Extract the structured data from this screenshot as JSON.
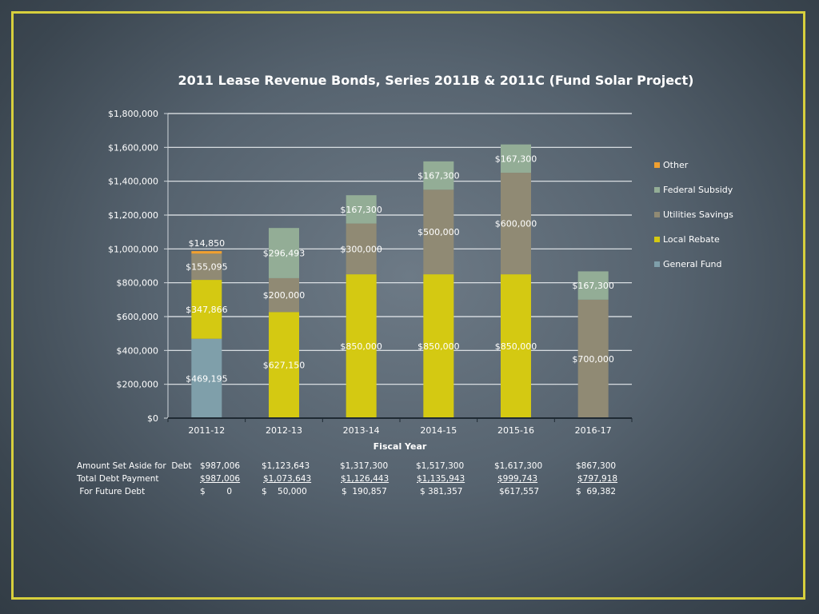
{
  "chart_data": {
    "type": "bar",
    "stacked": true,
    "title": "2011 Lease Revenue Bonds, Series 2011B & 2011C (Fund Solar Project)",
    "xlabel": "Fiscal Year",
    "ylabel": "",
    "ylim": [
      0,
      1800000
    ],
    "yticks": [
      {
        "value": 0,
        "label": "$0"
      },
      {
        "value": 200000,
        "label": "$200,000"
      },
      {
        "value": 400000,
        "label": "$400,000"
      },
      {
        "value": 600000,
        "label": "$600,000"
      },
      {
        "value": 800000,
        "label": "$800,000"
      },
      {
        "value": 1000000,
        "label": "$1,000,000"
      },
      {
        "value": 1200000,
        "label": "$1,200,000"
      },
      {
        "value": 1400000,
        "label": "$1,400,000"
      },
      {
        "value": 1600000,
        "label": "$1,600,000"
      },
      {
        "value": 1800000,
        "label": "$1,800,000"
      }
    ],
    "grid": true,
    "legend_position": "right",
    "categories": [
      "2011-12",
      "2012-13",
      "2013-14",
      "2014-15",
      "2015-16",
      "2016-17"
    ],
    "series": [
      {
        "name": "General Fund",
        "color": "#7f9faa",
        "values": [
          469195,
          0,
          0,
          0,
          0,
          0
        ],
        "labels": [
          "$469,195",
          "",
          "",
          "",
          "",
          ""
        ]
      },
      {
        "name": "Local Rebate",
        "color": "#d4c912",
        "values": [
          347866,
          627150,
          850000,
          850000,
          850000,
          0
        ],
        "labels": [
          "$347,866",
          "$627,150",
          "$850,000",
          "$850,000",
          "$850,000",
          ""
        ]
      },
      {
        "name": "Utilities Savings",
        "color": "#908a74",
        "values": [
          155095,
          200000,
          300000,
          500000,
          600000,
          700000
        ],
        "labels": [
          "$155,095",
          "$200,000",
          "$300,000",
          "$500,000",
          "$600,000",
          "$700,000"
        ]
      },
      {
        "name": "Federal Subsidy",
        "color": "#93ad96",
        "values": [
          0,
          296493,
          167300,
          167300,
          167300,
          167300
        ],
        "labels": [
          "",
          "$296,493",
          "$167,300",
          "$167,300",
          "$167,300",
          "$167,300"
        ]
      },
      {
        "name": "Other",
        "color": "#f0a030",
        "values": [
          14850,
          0,
          0,
          0,
          0,
          0
        ],
        "labels": [
          "$14,850",
          "",
          "",
          "",
          "",
          ""
        ]
      }
    ],
    "legend_order": [
      "Other",
      "Federal Subsidy",
      "Utilities Savings",
      "Local Rebate",
      "General Fund"
    ]
  },
  "summary_table": {
    "row_labels": [
      "Amount Set Aside for  Debt",
      "Total Debt Payment",
      " For Future Debt"
    ],
    "set_aside": [
      "$987,006",
      "$1,123,643",
      "$1,317,300",
      "$1,517,300",
      "$1,617,300",
      "$867,300"
    ],
    "total_debt_payment": [
      "$987,006",
      "$1,073,643",
      "$1,126,443",
      "$1,135,943",
      "$999,743",
      "$797,918"
    ],
    "future_debt": [
      "$        0",
      "$    50,000",
      "$  190,857",
      "$ 381,357",
      "$617,557",
      "$  69,382"
    ]
  }
}
